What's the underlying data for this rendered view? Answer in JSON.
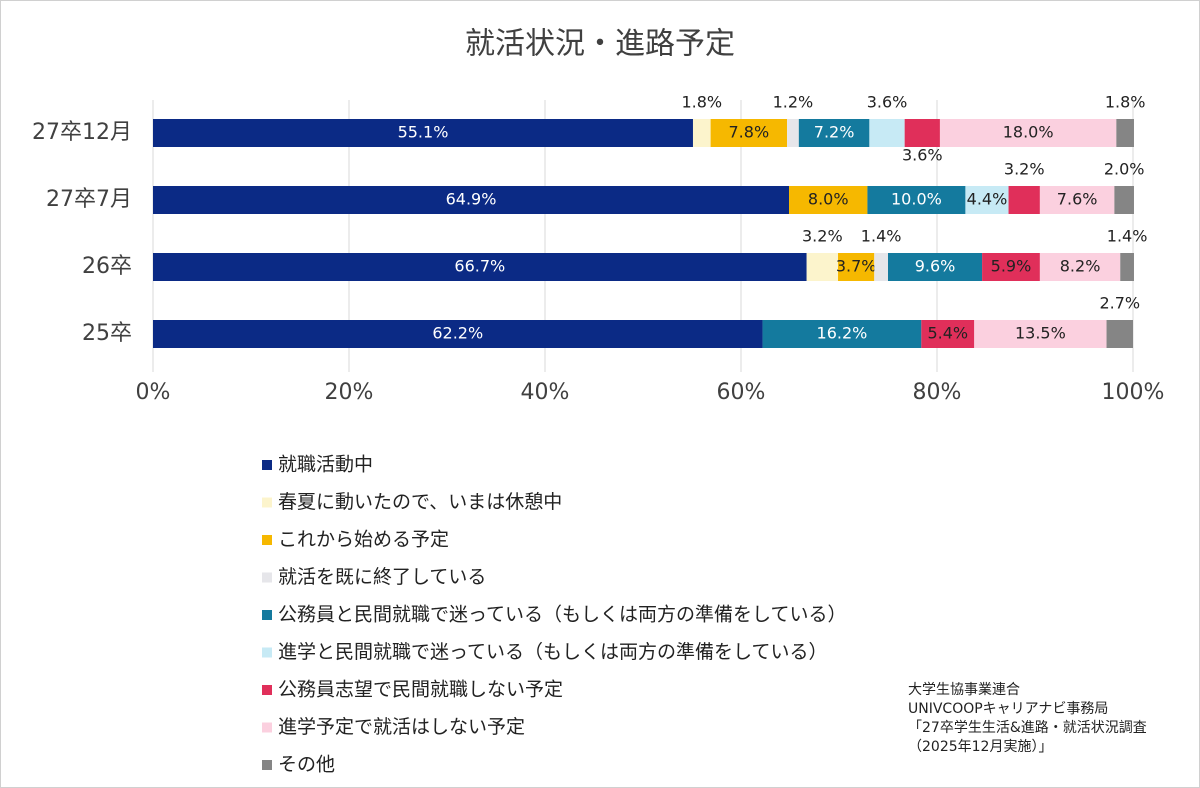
{
  "chart_data": {
    "type": "stacked-bar-horizontal",
    "title": "就活状況・進路予定",
    "categories": [
      "27卒12月",
      "27卒7月",
      "26卒",
      "25卒"
    ],
    "series": [
      {
        "name": "就職活動中",
        "color": "#0b2a85",
        "values": [
          55.1,
          64.9,
          66.7,
          62.2
        ],
        "value_labels": [
          "55.1%",
          "64.9%",
          "66.7%",
          "62.2%"
        ]
      },
      {
        "name": "春夏に動いたので、いまは休憩中",
        "color": "#fcf4cc",
        "values": [
          1.8,
          null,
          3.2,
          null
        ],
        "value_labels": [
          "1.8%",
          null,
          "3.2%",
          null
        ]
      },
      {
        "name": "これから始める予定",
        "color": "#f6b800",
        "values": [
          7.8,
          8.0,
          3.7,
          null
        ],
        "value_labels": [
          "7.8%",
          "8.0%",
          "3.7%",
          null
        ]
      },
      {
        "name": "就活を既に終了している",
        "color": "#e6e6ea",
        "values": [
          1.2,
          null,
          1.4,
          null
        ],
        "value_labels": [
          "1.2%",
          null,
          "1.4%",
          null
        ]
      },
      {
        "name": "公務員と民間就職で迷っている（もしくは両方の準備をしている）",
        "color": "#147a9e",
        "values": [
          7.2,
          10.0,
          9.6,
          16.2
        ],
        "value_labels": [
          "7.2%",
          "10.0%",
          "9.6%",
          "16.2%"
        ]
      },
      {
        "name": "進学と民間就職で迷っている（もしくは両方の準備をしている）",
        "color": "#c7eaf5",
        "values": [
          3.6,
          4.4,
          null,
          null
        ],
        "value_labels": [
          "3.6%",
          "4.4%",
          null,
          null
        ]
      },
      {
        "name": "公務員志望で民間就職しない予定",
        "color": "#e02f5a",
        "values": [
          3.6,
          3.2,
          5.9,
          5.4
        ],
        "value_labels": [
          "3.6%",
          "3.2%",
          "5.9%",
          "5.4%"
        ]
      },
      {
        "name": "進学予定で就活はしない予定",
        "color": "#fbd0df",
        "values": [
          18.0,
          7.6,
          8.2,
          13.5
        ],
        "value_labels": [
          "18.0%",
          "7.6%",
          "8.2%",
          "13.5%"
        ]
      },
      {
        "name": "その他",
        "color": "#858585",
        "values": [
          1.8,
          2.0,
          1.4,
          2.7
        ],
        "value_labels": [
          "1.8%",
          "2.0%",
          "1.4%",
          "2.7%"
        ]
      }
    ],
    "xlim": [
      0,
      100
    ],
    "xticks": [
      {
        "value": 0,
        "label": "0%"
      },
      {
        "value": 20,
        "label": "20%"
      },
      {
        "value": 40,
        "label": "40%"
      },
      {
        "value": 60,
        "label": "60%"
      },
      {
        "value": 80,
        "label": "80%"
      },
      {
        "value": 100,
        "label": "100%"
      }
    ],
    "grid": true,
    "source": [
      "大学生協事業連合",
      "UNIVCOOPキャリアナビ事務局",
      "「27卒学生生活&進路・就活状況調査",
      "（2025年12月実施）」"
    ]
  }
}
